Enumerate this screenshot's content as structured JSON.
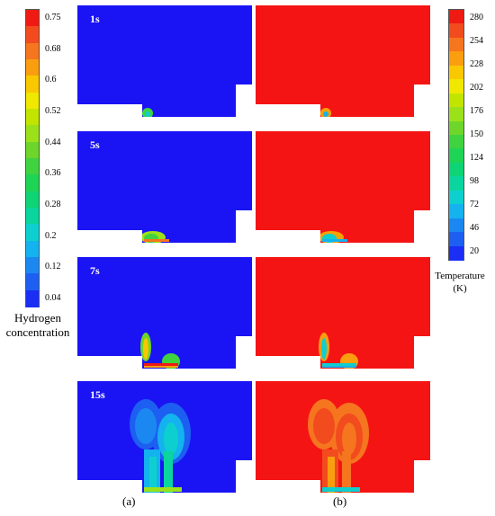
{
  "hydrogen_colorbar": {
    "title_line1": "Hydrogen",
    "title_line2": "concentration",
    "ticks": [
      "0.75",
      "0.68",
      "0.6",
      "0.52",
      "0.44",
      "0.36",
      "0.28",
      "0.2",
      "0.12",
      "0.04"
    ],
    "colors": [
      "#ef1a14",
      "#f24b1e",
      "#f6751f",
      "#fa9e10",
      "#f9c800",
      "#f0e800",
      "#c2e500",
      "#9be11a",
      "#6ed52b",
      "#3fd340",
      "#1ed455",
      "#0ed476",
      "#0bd59e",
      "#0ecfcf",
      "#14b2ee",
      "#1b88f1",
      "#1d5ff1",
      "#1a2ef5"
    ]
  },
  "temperature_colorbar": {
    "title_line1": "Temperature",
    "title_line2": "(K)",
    "ticks": [
      "280",
      "254",
      "228",
      "202",
      "176",
      "150",
      "124",
      "98",
      "72",
      "46",
      "20"
    ],
    "colors": [
      "#ef1a14",
      "#f24b1e",
      "#f6751f",
      "#fa9e10",
      "#f9c800",
      "#f0e800",
      "#c2e500",
      "#9be11a",
      "#6ed52b",
      "#3fd340",
      "#1ed455",
      "#0ed476",
      "#0bd59e",
      "#0ecfcf",
      "#14b2ee",
      "#1b88f1",
      "#1d5ff1",
      "#1a2ef5"
    ]
  },
  "time_steps": [
    "1s",
    "5s",
    "7s",
    "15s"
  ],
  "subfigure_labels": {
    "a": "(a)",
    "b": "(b)"
  },
  "colors": {
    "cold_field": "#1a14f5",
    "hot_field": "#f51414"
  }
}
